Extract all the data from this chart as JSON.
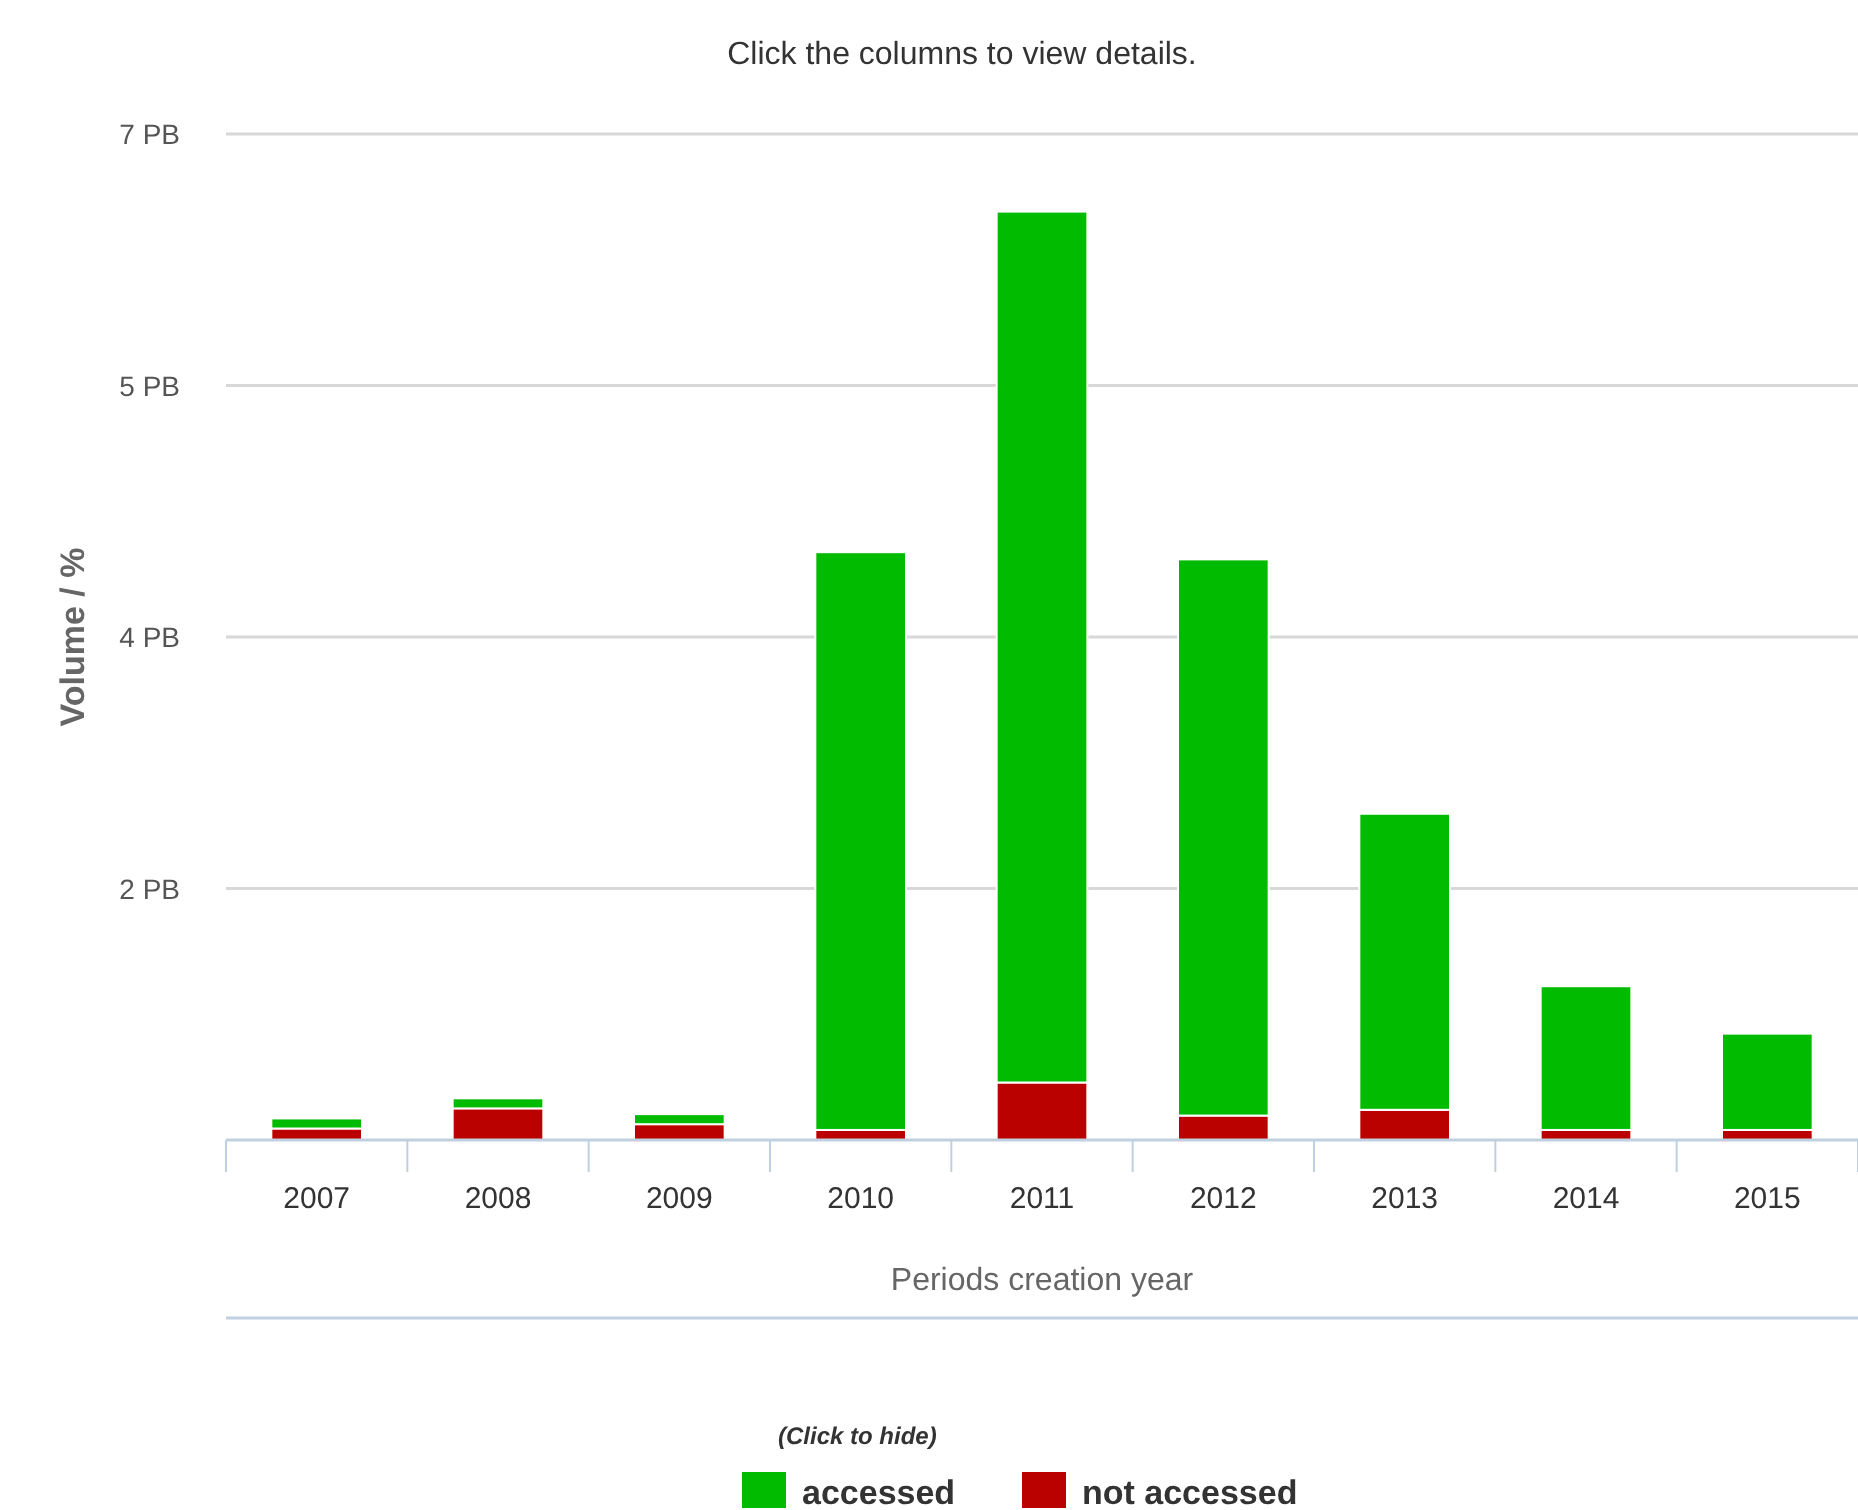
{
  "chart_data": {
    "type": "bar",
    "stacked": true,
    "title": "Click the columns to view details.",
    "xlabel": "Periods creation year",
    "ylabel": "Volume / %",
    "legend_title": "(Click to hide)",
    "legend": "bottom",
    "grid": "y",
    "categories": [
      "2007",
      "2008",
      "2009",
      "2010",
      "2011",
      "2012",
      "2013",
      "2014",
      "2015"
    ],
    "ylim": [
      0,
      7
    ],
    "yticks": [
      {
        "value": 1.75,
        "label": "2 PB"
      },
      {
        "value": 3.5,
        "label": "4 PB"
      },
      {
        "value": 5.25,
        "label": "5 PB"
      },
      {
        "value": 7,
        "label": "7 PB"
      }
    ],
    "series": [
      {
        "name": "not accessed",
        "color": "#bb0000",
        "values": [
          0.08,
          0.22,
          0.11,
          0.07,
          0.4,
          0.17,
          0.21,
          0.07,
          0.07
        ]
      },
      {
        "name": "accessed",
        "color": "#00bb00",
        "values": [
          0.07,
          0.07,
          0.07,
          4.02,
          6.06,
          3.87,
          2.06,
          1,
          0.67
        ]
      }
    ]
  }
}
